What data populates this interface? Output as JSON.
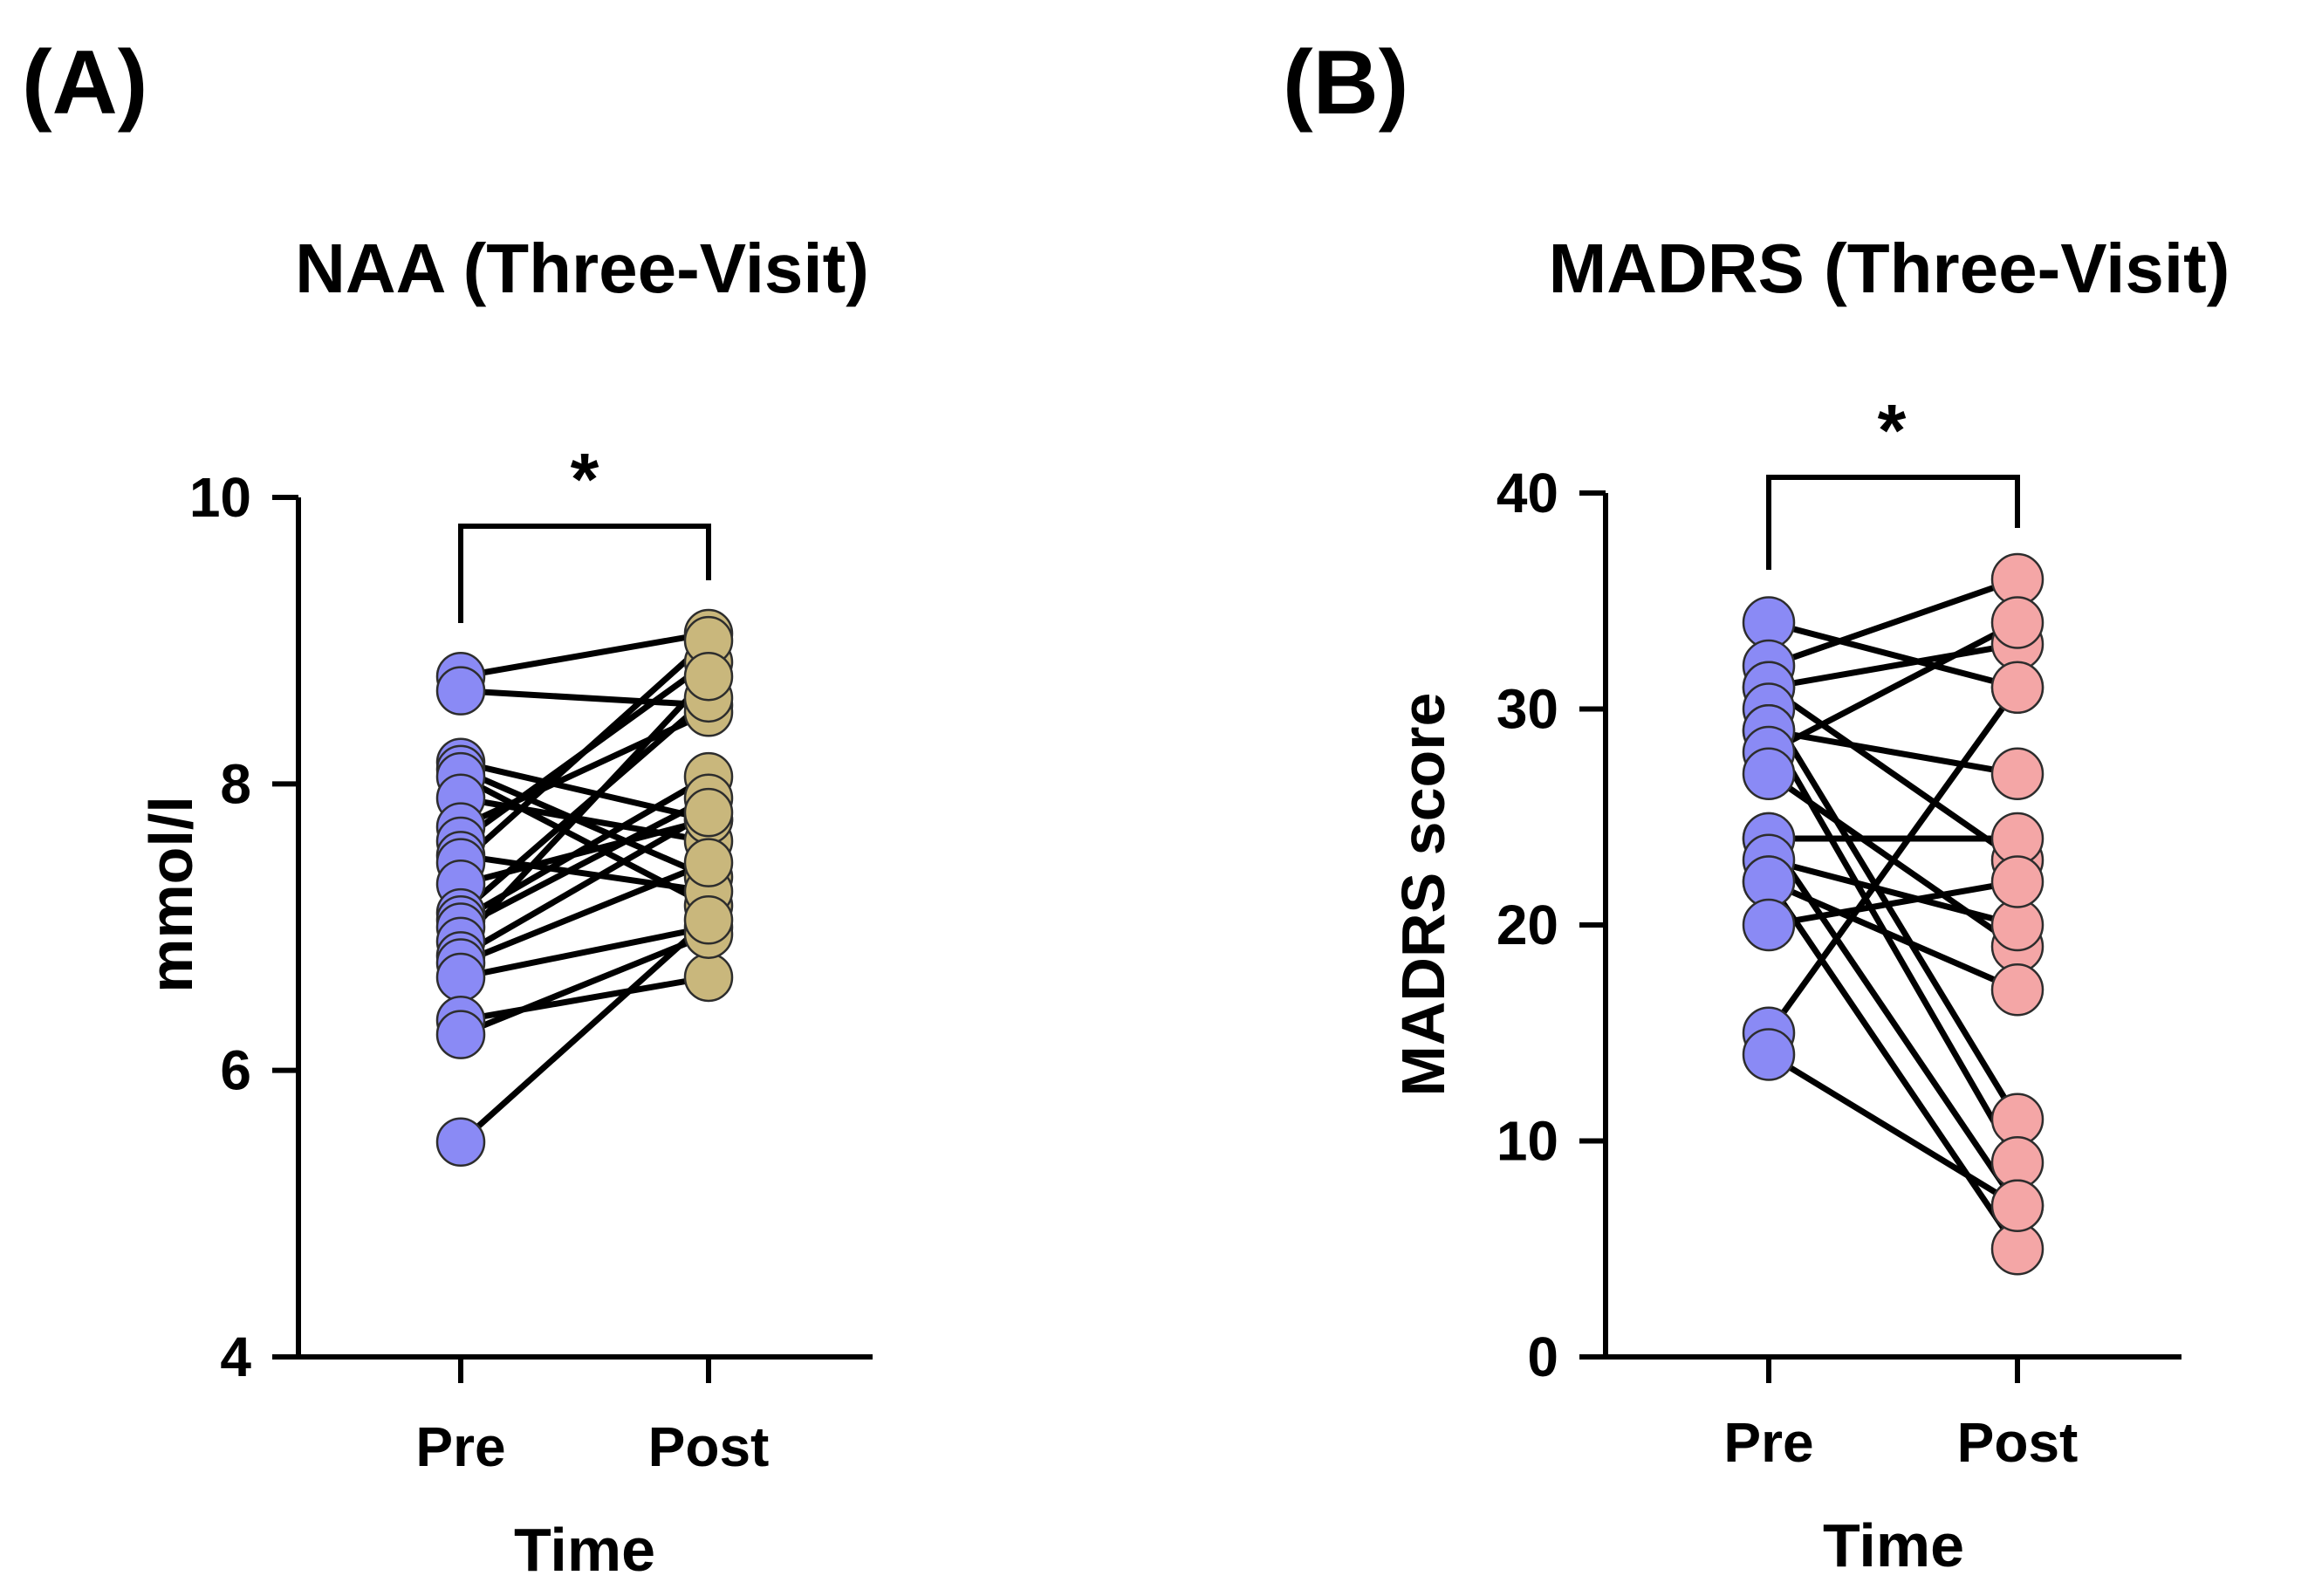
{
  "chart_data": [
    {
      "type": "paired-dot",
      "panel_label": "(A)",
      "title": "NAA (Three-Visit)",
      "xlabel": "Time",
      "ylabel": "mmol/l",
      "categories": [
        "Pre",
        "Post"
      ],
      "ylim": [
        4,
        10
      ],
      "yticks": [
        4,
        6,
        8,
        10
      ],
      "colors": {
        "Pre": "#8a8af5",
        "Post": "#c9b77c"
      },
      "significance": "*",
      "pairs": [
        [
          8.75,
          9.05
        ],
        [
          8.65,
          8.55
        ],
        [
          8.15,
          7.75
        ],
        [
          8.1,
          7.35
        ],
        [
          8.05,
          7.15
        ],
        [
          7.9,
          7.6
        ],
        [
          7.7,
          8.5
        ],
        [
          7.6,
          8.85
        ],
        [
          7.5,
          7.25
        ],
        [
          7.45,
          9.0
        ],
        [
          7.3,
          7.75
        ],
        [
          7.1,
          8.6
        ],
        [
          7.05,
          8.05
        ],
        [
          7.0,
          7.9
        ],
        [
          6.9,
          8.75
        ],
        [
          6.8,
          7.8
        ],
        [
          6.75,
          7.45
        ],
        [
          6.65,
          7.0
        ],
        [
          6.35,
          6.65
        ],
        [
          6.25,
          6.95
        ],
        [
          5.5,
          7.05
        ]
      ]
    },
    {
      "type": "paired-dot",
      "panel_label": "(B)",
      "title": "MADRS (Three-Visit)",
      "xlabel": "Time",
      "ylabel": "MADRS score",
      "categories": [
        "Pre",
        "Post"
      ],
      "ylim": [
        0,
        40
      ],
      "yticks": [
        0,
        10,
        20,
        30,
        40
      ],
      "colors": {
        "Pre": "#8a8af5",
        "Post": "#f4a6a6"
      },
      "significance": "*",
      "pairs": [
        [
          34,
          31
        ],
        [
          32,
          36
        ],
        [
          31,
          33
        ],
        [
          31,
          23
        ],
        [
          30,
          11
        ],
        [
          29,
          9
        ],
        [
          29,
          27
        ],
        [
          28,
          34
        ],
        [
          27,
          19
        ],
        [
          24,
          24
        ],
        [
          24,
          7
        ],
        [
          23,
          20
        ],
        [
          22,
          5
        ],
        [
          22,
          17
        ],
        [
          20,
          22
        ],
        [
          15,
          31
        ],
        [
          14,
          7
        ]
      ]
    }
  ]
}
